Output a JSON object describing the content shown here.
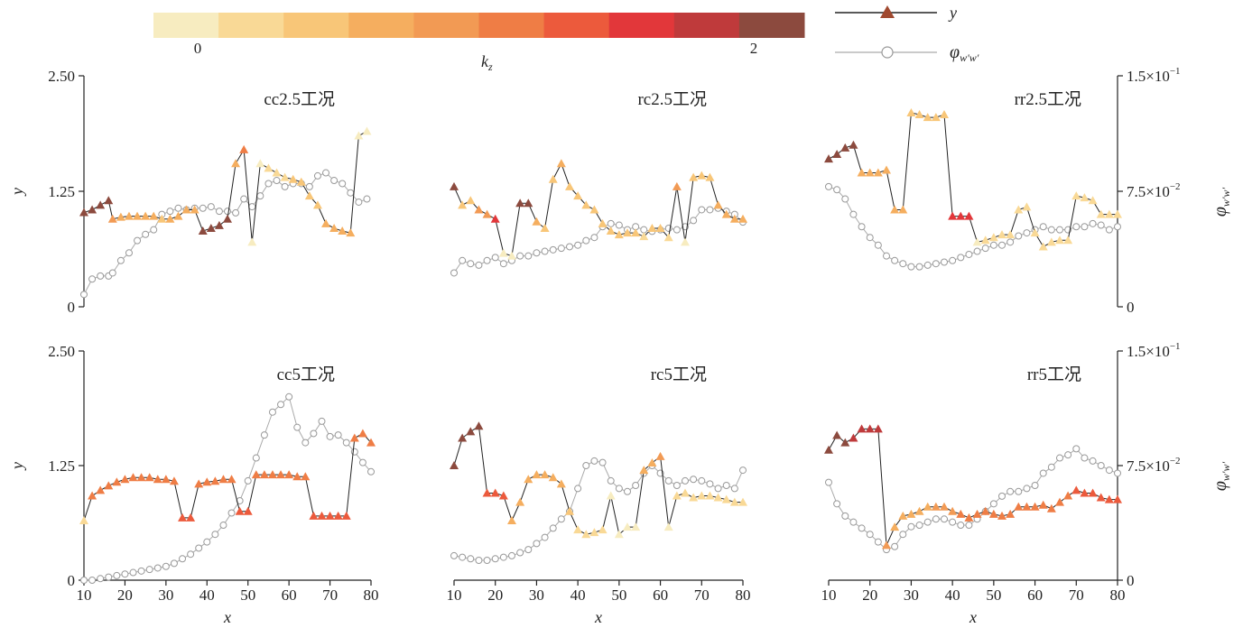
{
  "colorbar": {
    "colors": [
      "#f7ecc0",
      "#f9d996",
      "#f8c678",
      "#f5ae5f",
      "#f29a54",
      "#ef7d45",
      "#ec5a3c",
      "#e2373a",
      "#bf3a3b",
      "#8c4a3e"
    ],
    "tick_labels": [
      "0",
      "2"
    ],
    "label": "k",
    "label_sub": "z"
  },
  "legend": {
    "items": [
      {
        "label": "y",
        "marker": "triangle-icon",
        "line_color": "#222222",
        "marker_color": "#a0492f"
      },
      {
        "label": "φ",
        "label_sub": "w′w′",
        "marker": "circle-icon",
        "line_color": "#aaaaaa",
        "marker_color": "#ffffff"
      }
    ]
  },
  "axes": {
    "x_label": "x",
    "x_ticks": [
      "10",
      "20",
      "30",
      "40",
      "50",
      "60",
      "70",
      "80"
    ],
    "y_label": "y",
    "y_ticks": [
      "0",
      "1.25",
      "2.50"
    ],
    "y2_label": "φ",
    "y2_label_sub": "w′w′",
    "y2_ticks": [
      "0",
      "7.5×10",
      "1.5×10"
    ],
    "y2_tick_exp": [
      "",
      "−2",
      "−1"
    ]
  },
  "chart_data": [
    {
      "type": "line",
      "title": "cc2.5工况",
      "xlim": [
        10,
        80
      ],
      "ylim": [
        0,
        2.5
      ],
      "y2lim": [
        0,
        0.15
      ],
      "x": [
        10,
        12,
        14,
        16,
        17,
        19,
        21,
        23,
        25,
        27,
        29,
        31,
        33,
        35,
        37,
        39,
        41,
        43,
        45,
        47,
        49,
        51,
        53,
        55,
        57,
        59,
        61,
        63,
        65,
        67,
        69,
        71,
        73,
        75,
        77,
        79
      ],
      "series": [
        {
          "name": "y",
          "values": [
            1.02,
            1.05,
            1.1,
            1.15,
            0.95,
            0.97,
            0.98,
            0.98,
            0.98,
            0.98,
            0.95,
            0.95,
            0.98,
            1.05,
            1.05,
            0.82,
            0.85,
            0.88,
            0.95,
            1.55,
            1.7,
            0.7,
            1.55,
            1.5,
            1.45,
            1.4,
            1.38,
            1.35,
            1.2,
            1.1,
            0.9,
            0.85,
            0.82,
            0.8,
            1.85,
            1.9
          ],
          "kz": [
            2.0,
            2.0,
            2.0,
            2.0,
            0.8,
            0.6,
            0.6,
            0.6,
            0.6,
            0.6,
            0.5,
            0.6,
            0.6,
            0.6,
            0.6,
            2.0,
            2.0,
            2.0,
            2.0,
            0.6,
            1.0,
            0.1,
            0.1,
            0.2,
            0.3,
            0.3,
            0.4,
            0.4,
            0.5,
            0.5,
            0.6,
            0.6,
            0.6,
            0.6,
            0.1,
            0.1
          ]
        },
        {
          "name": "φw′w′",
          "values": [
            0.008,
            0.018,
            0.02,
            0.02,
            0.022,
            0.03,
            0.035,
            0.043,
            0.047,
            0.05,
            0.06,
            0.062,
            0.064,
            0.063,
            0.064,
            0.064,
            0.065,
            0.062,
            0.062,
            0.061,
            0.07,
            0.065,
            0.072,
            0.08,
            0.082,
            0.078,
            0.08,
            0.08,
            0.078,
            0.085,
            0.087,
            0.082,
            0.08,
            0.074,
            0.068,
            0.07
          ]
        }
      ]
    },
    {
      "type": "line",
      "title": "rc2.5工况",
      "xlim": [
        10,
        80
      ],
      "ylim": [
        0,
        2.5
      ],
      "y2lim": [
        0,
        0.15
      ],
      "x": [
        10,
        12,
        14,
        16,
        18,
        20,
        22,
        24,
        26,
        28,
        30,
        32,
        34,
        36,
        38,
        40,
        42,
        44,
        46,
        48,
        50,
        52,
        54,
        56,
        58,
        60,
        62,
        64,
        66,
        68,
        70,
        72,
        74,
        76,
        78,
        80
      ],
      "series": [
        {
          "name": "y",
          "values": [
            1.3,
            1.1,
            1.15,
            1.05,
            1.0,
            0.95,
            0.58,
            0.55,
            1.12,
            1.12,
            0.92,
            0.85,
            1.38,
            1.55,
            1.3,
            1.2,
            1.1,
            1.05,
            0.9,
            0.82,
            0.78,
            0.8,
            0.8,
            0.76,
            0.85,
            0.85,
            0.75,
            1.3,
            0.7,
            1.4,
            1.42,
            1.4,
            1.1,
            1.0,
            0.95,
            0.95
          ],
          "kz": [
            1.9,
            0.5,
            0.4,
            0.9,
            0.9,
            1.4,
            0.1,
            0.1,
            1.9,
            1.9,
            0.6,
            0.4,
            0.4,
            0.6,
            0.4,
            0.4,
            0.5,
            0.5,
            0.5,
            0.5,
            0.5,
            0.5,
            0.4,
            0.3,
            0.4,
            0.4,
            0.3,
            0.9,
            0.1,
            0.5,
            0.5,
            0.5,
            0.6,
            0.6,
            0.6,
            0.6
          ]
        },
        {
          "name": "φw′w′",
          "values": [
            0.022,
            0.03,
            0.028,
            0.027,
            0.03,
            0.032,
            0.028,
            0.03,
            0.033,
            0.033,
            0.035,
            0.036,
            0.037,
            0.038,
            0.039,
            0.04,
            0.043,
            0.045,
            0.052,
            0.054,
            0.053,
            0.05,
            0.052,
            0.05,
            0.049,
            0.05,
            0.051,
            0.05,
            0.052,
            0.056,
            0.063,
            0.063,
            0.064,
            0.062,
            0.06,
            0.055
          ]
        }
      ]
    },
    {
      "type": "line",
      "title": "rr2.5工况",
      "xlim": [
        10,
        80
      ],
      "ylim": [
        0,
        2.5
      ],
      "y2lim": [
        0,
        0.15
      ],
      "x": [
        10,
        12,
        14,
        16,
        18,
        20,
        22,
        24,
        26,
        28,
        30,
        32,
        34,
        36,
        38,
        40,
        42,
        44,
        46,
        48,
        50,
        52,
        54,
        56,
        58,
        60,
        62,
        64,
        66,
        68,
        70,
        72,
        74,
        76,
        78,
        80
      ],
      "series": [
        {
          "name": "y",
          "values": [
            1.6,
            1.65,
            1.72,
            1.75,
            1.45,
            1.45,
            1.45,
            1.48,
            1.05,
            1.05,
            2.1,
            2.08,
            2.05,
            2.05,
            2.08,
            0.98,
            0.98,
            0.98,
            0.7,
            0.72,
            0.75,
            0.78,
            0.78,
            1.05,
            1.08,
            0.8,
            0.65,
            0.7,
            0.72,
            0.72,
            1.2,
            1.18,
            1.15,
            1.0,
            1.0,
            1.0
          ],
          "kz": [
            2.0,
            2.0,
            2.0,
            2.0,
            0.6,
            0.6,
            0.6,
            0.6,
            0.6,
            0.6,
            0.5,
            0.5,
            0.5,
            0.5,
            0.5,
            1.4,
            1.4,
            1.4,
            0.1,
            0.2,
            0.2,
            0.3,
            0.3,
            0.3,
            0.3,
            0.3,
            0.3,
            0.3,
            0.3,
            0.3,
            0.3,
            0.3,
            0.3,
            0.3,
            0.3,
            0.3
          ]
        },
        {
          "name": "φw′w′",
          "values": [
            0.078,
            0.076,
            0.07,
            0.06,
            0.052,
            0.045,
            0.04,
            0.033,
            0.03,
            0.028,
            0.026,
            0.026,
            0.027,
            0.028,
            0.029,
            0.03,
            0.032,
            0.034,
            0.036,
            0.038,
            0.04,
            0.04,
            0.042,
            0.046,
            0.048,
            0.05,
            0.052,
            0.05,
            0.05,
            0.05,
            0.052,
            0.052,
            0.054,
            0.053,
            0.05,
            0.052
          ]
        }
      ]
    },
    {
      "type": "line",
      "title": "cc5工况",
      "xlim": [
        10,
        80
      ],
      "ylim": [
        0,
        2.5
      ],
      "y2lim": [
        0,
        0.15
      ],
      "x": [
        10,
        12,
        14,
        16,
        18,
        20,
        22,
        24,
        26,
        28,
        30,
        32,
        34,
        36,
        38,
        40,
        42,
        44,
        46,
        48,
        50,
        52,
        54,
        56,
        58,
        60,
        62,
        64,
        66,
        68,
        70,
        72,
        74,
        76,
        78,
        80
      ],
      "series": [
        {
          "name": "y",
          "values": [
            0.65,
            0.92,
            0.98,
            1.03,
            1.07,
            1.1,
            1.12,
            1.12,
            1.12,
            1.1,
            1.1,
            1.08,
            0.68,
            0.68,
            1.05,
            1.07,
            1.08,
            1.1,
            1.1,
            0.75,
            0.75,
            1.15,
            1.15,
            1.15,
            1.15,
            1.15,
            1.13,
            1.13,
            0.7,
            0.7,
            0.7,
            0.7,
            0.7,
            1.55,
            1.6,
            1.5
          ],
          "kz": [
            0.3,
            1.1,
            1.1,
            1.1,
            1.1,
            1.1,
            1.1,
            1.1,
            1.1,
            1.1,
            1.1,
            1.1,
            1.2,
            1.2,
            1.1,
            1.1,
            1.1,
            1.1,
            1.1,
            1.2,
            1.2,
            1.1,
            1.1,
            1.1,
            1.1,
            1.1,
            1.1,
            1.1,
            1.2,
            1.2,
            1.2,
            1.2,
            1.2,
            1.1,
            1.1,
            1.1
          ]
        },
        {
          "name": "φw′w′",
          "values": [
            0.0,
            0.0,
            0.001,
            0.002,
            0.003,
            0.004,
            0.005,
            0.006,
            0.007,
            0.008,
            0.009,
            0.011,
            0.014,
            0.017,
            0.021,
            0.025,
            0.03,
            0.036,
            0.044,
            0.052,
            0.065,
            0.08,
            0.095,
            0.11,
            0.115,
            0.12,
            0.1,
            0.09,
            0.096,
            0.104,
            0.094,
            0.095,
            0.09,
            0.084,
            0.077,
            0.071
          ]
        }
      ]
    },
    {
      "type": "line",
      "title": "rc5工况",
      "xlim": [
        10,
        80
      ],
      "ylim": [
        0,
        2.5
      ],
      "y2lim": [
        0,
        0.15
      ],
      "x": [
        10,
        12,
        14,
        16,
        18,
        20,
        22,
        24,
        26,
        28,
        30,
        32,
        34,
        36,
        38,
        40,
        42,
        44,
        46,
        48,
        50,
        52,
        54,
        56,
        58,
        60,
        62,
        64,
        66,
        68,
        70,
        72,
        74,
        76,
        78,
        80
      ],
      "series": [
        {
          "name": "y",
          "values": [
            1.25,
            1.55,
            1.62,
            1.68,
            0.95,
            0.95,
            0.92,
            0.65,
            0.85,
            1.1,
            1.15,
            1.15,
            1.12,
            1.05,
            0.75,
            0.55,
            0.5,
            0.52,
            0.55,
            0.92,
            0.5,
            0.58,
            0.58,
            1.2,
            1.28,
            1.35,
            0.58,
            0.92,
            0.95,
            0.9,
            0.92,
            0.92,
            0.9,
            0.88,
            0.85,
            0.85
          ],
          "kz": [
            2.0,
            2.0,
            2.0,
            2.0,
            1.2,
            1.2,
            1.2,
            0.6,
            0.6,
            0.6,
            0.6,
            0.6,
            0.6,
            0.6,
            0.5,
            0.2,
            0.2,
            0.2,
            0.2,
            0.1,
            0.1,
            0.1,
            0.1,
            0.6,
            0.6,
            0.8,
            0.1,
            0.2,
            0.2,
            0.2,
            0.2,
            0.2,
            0.2,
            0.2,
            0.2,
            0.2
          ]
        },
        {
          "name": "φw′w′",
          "values": [
            0.016,
            0.015,
            0.014,
            0.013,
            0.013,
            0.014,
            0.015,
            0.016,
            0.018,
            0.02,
            0.024,
            0.028,
            0.034,
            0.04,
            0.045,
            0.06,
            0.075,
            0.078,
            0.077,
            0.065,
            0.06,
            0.058,
            0.062,
            0.07,
            0.075,
            0.07,
            0.065,
            0.062,
            0.065,
            0.066,
            0.065,
            0.063,
            0.06,
            0.062,
            0.06,
            0.072
          ]
        }
      ]
    },
    {
      "type": "line",
      "title": "rr5工况",
      "xlim": [
        10,
        80
      ],
      "ylim": [
        0,
        2.5
      ],
      "y2lim": [
        0,
        0.15
      ],
      "x": [
        10,
        12,
        14,
        16,
        18,
        20,
        22,
        24,
        26,
        28,
        30,
        32,
        34,
        36,
        38,
        40,
        42,
        44,
        46,
        48,
        50,
        52,
        54,
        56,
        58,
        60,
        62,
        64,
        66,
        68,
        70,
        72,
        74,
        76,
        78,
        80
      ],
      "series": [
        {
          "name": "y",
          "values": [
            1.42,
            1.58,
            1.5,
            1.55,
            1.65,
            1.65,
            1.65,
            0.38,
            0.58,
            0.7,
            0.72,
            0.75,
            0.8,
            0.8,
            0.8,
            0.75,
            0.72,
            0.68,
            0.72,
            0.75,
            0.72,
            0.7,
            0.72,
            0.8,
            0.8,
            0.8,
            0.82,
            0.78,
            0.85,
            0.92,
            0.98,
            0.95,
            0.95,
            0.9,
            0.88,
            0.88
          ],
          "kz": [
            2.0,
            2.0,
            2.0,
            1.6,
            1.6,
            1.6,
            1.6,
            0.8,
            0.6,
            0.6,
            0.6,
            0.6,
            0.6,
            0.9,
            0.9,
            0.9,
            1.0,
            1.0,
            1.0,
            1.0,
            1.1,
            1.1,
            1.1,
            1.0,
            1.0,
            1.0,
            1.0,
            1.0,
            1.0,
            1.0,
            1.2,
            1.2,
            1.2,
            1.2,
            1.2,
            1.2
          ]
        },
        {
          "name": "φw′w′",
          "values": [
            0.064,
            0.05,
            0.042,
            0.038,
            0.034,
            0.03,
            0.025,
            0.02,
            0.022,
            0.03,
            0.035,
            0.036,
            0.038,
            0.04,
            0.04,
            0.038,
            0.036,
            0.036,
            0.04,
            0.045,
            0.05,
            0.055,
            0.058,
            0.058,
            0.06,
            0.062,
            0.07,
            0.074,
            0.08,
            0.082,
            0.086,
            0.08,
            0.078,
            0.075,
            0.072,
            0.07
          ]
        }
      ]
    }
  ]
}
